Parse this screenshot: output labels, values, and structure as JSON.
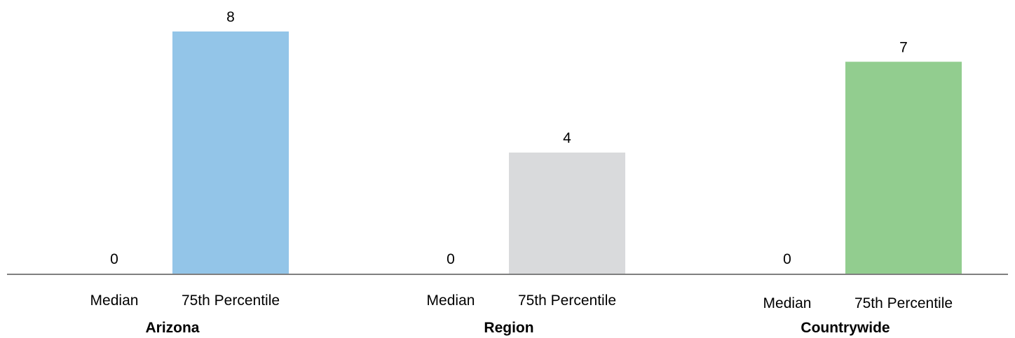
{
  "chart_data": {
    "type": "bar",
    "title": "",
    "xlabel": "",
    "ylabel": "",
    "ylim": [
      0,
      8.5
    ],
    "grid": false,
    "legend": "none",
    "groups": [
      {
        "name": "Arizona",
        "categories": [
          "Median",
          "75th Percentile"
        ],
        "values": [
          0,
          8
        ],
        "colors": [
          "#93c5e8",
          "#93c5e8"
        ]
      },
      {
        "name": "Region",
        "categories": [
          "Median",
          "75th Percentile"
        ],
        "values": [
          0,
          4
        ],
        "colors": [
          "#d9dadc",
          "#d9dadc"
        ]
      },
      {
        "name": "Countrywide",
        "categories": [
          "Median",
          "75th Percentile"
        ],
        "values": [
          0,
          7
        ],
        "colors": [
          "#92cd8f",
          "#92cd8f"
        ]
      }
    ],
    "axis_color": "#7f7f7f"
  }
}
